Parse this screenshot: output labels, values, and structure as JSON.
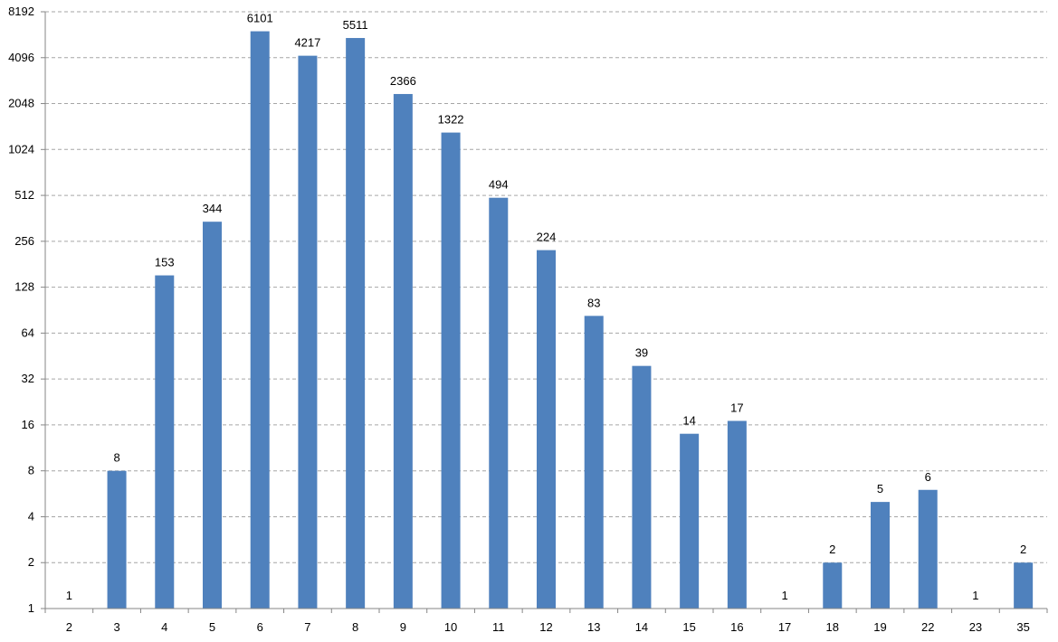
{
  "chart_data": {
    "type": "bar",
    "title": "",
    "xlabel": "",
    "ylabel": "",
    "yscale": "log2",
    "ylim": [
      1,
      8192
    ],
    "yticks": [
      "1",
      "2",
      "4",
      "8",
      "16",
      "32",
      "64",
      "128",
      "256",
      "512",
      "1024",
      "2048",
      "4096",
      "8192"
    ],
    "grid": true,
    "legend": "none",
    "categories": [
      "2",
      "3",
      "4",
      "5",
      "6",
      "7",
      "8",
      "9",
      "10",
      "11",
      "12",
      "13",
      "14",
      "15",
      "16",
      "17",
      "18",
      "19",
      "22",
      "23",
      "35"
    ],
    "values": [
      1,
      8,
      153,
      344,
      6101,
      4217,
      5511,
      2366,
      1322,
      494,
      224,
      83,
      39,
      14,
      17,
      1,
      2,
      5,
      6,
      1,
      2
    ],
    "data_labels": [
      "1",
      "8",
      "153",
      "344",
      "6101",
      "4217",
      "5511",
      "2366",
      "1322",
      "494",
      "224",
      "83",
      "39",
      "14",
      "17",
      "1",
      "2",
      "5",
      "6",
      "1",
      "2"
    ],
    "bar_color": "#4f81bd",
    "gridline_color": "#a6a6a6",
    "axis_color": "#868686"
  }
}
